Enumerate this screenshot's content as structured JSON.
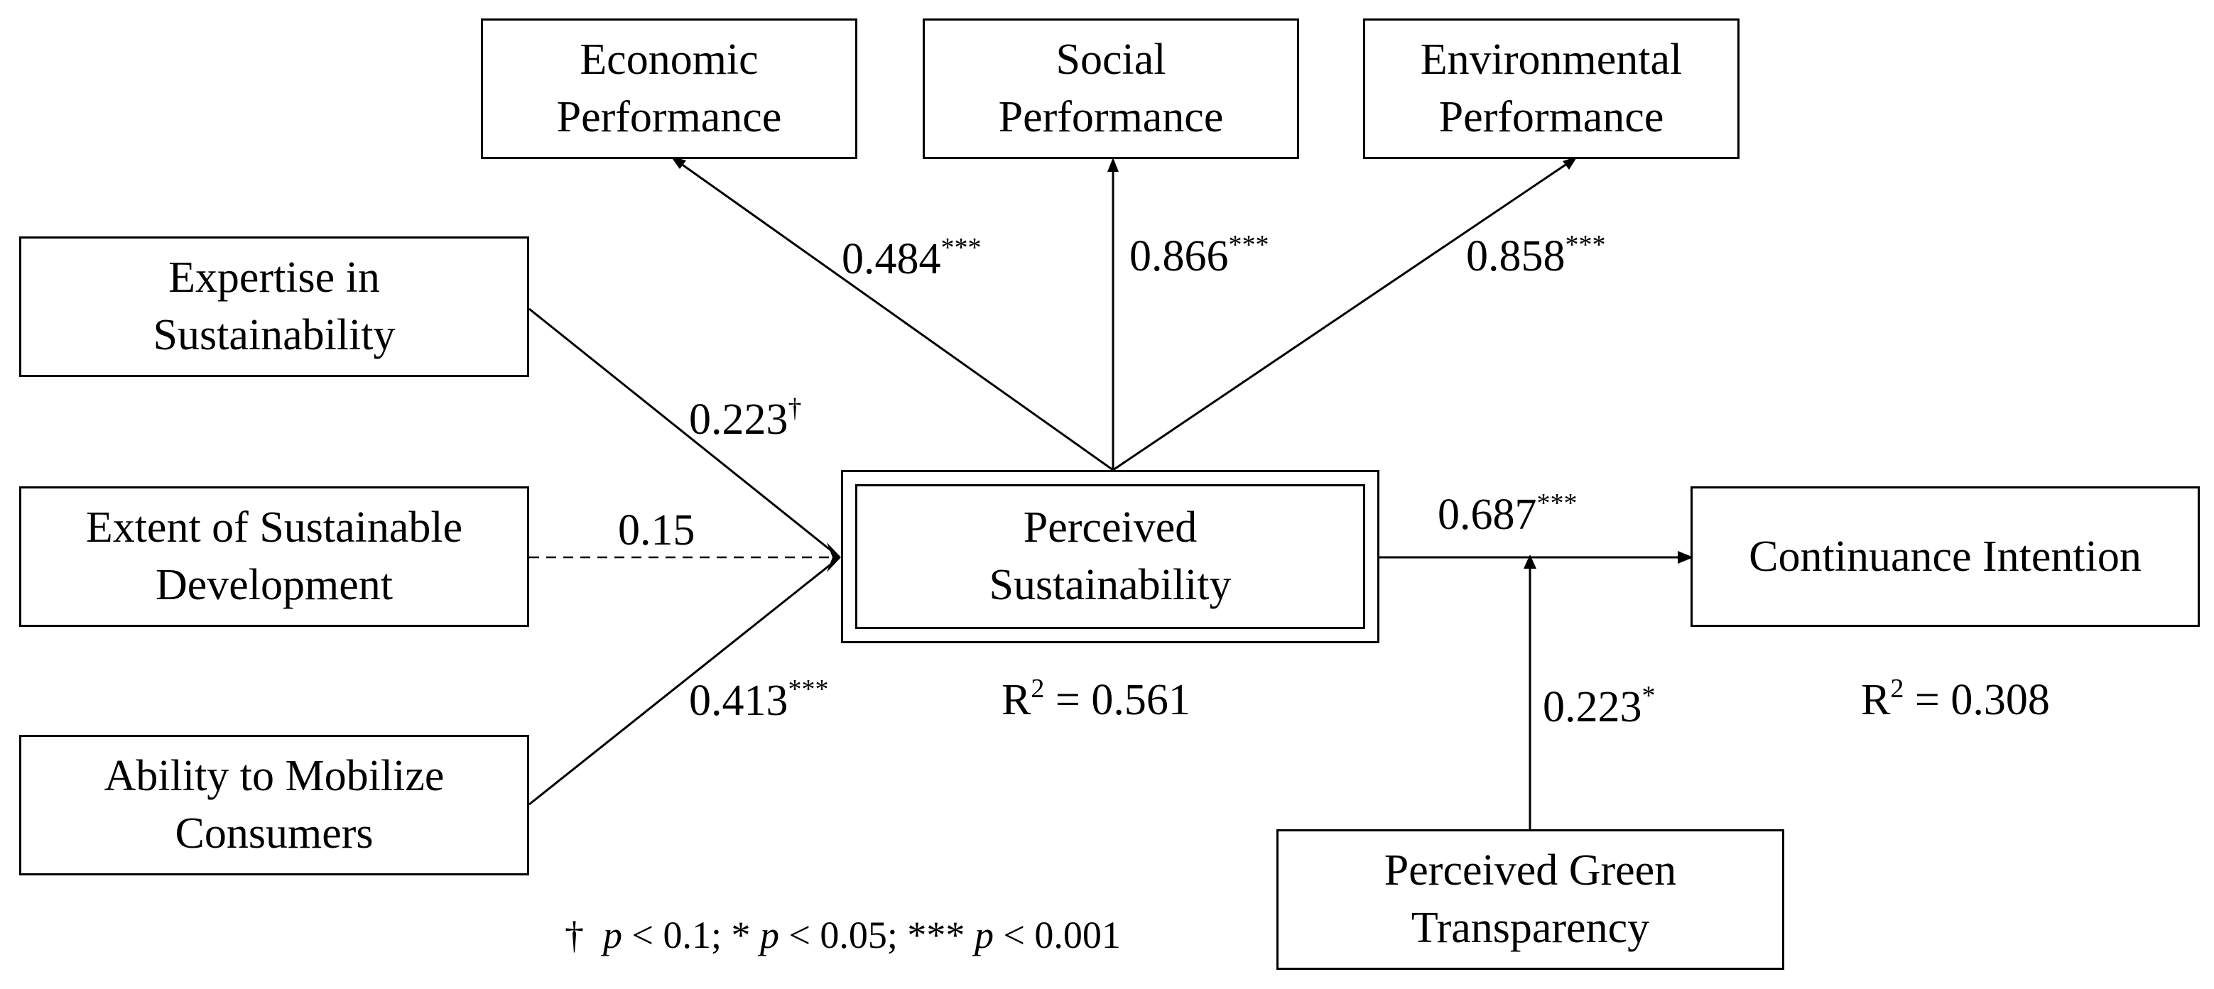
{
  "constructs": {
    "economic": [
      "Economic",
      "Performance"
    ],
    "social": [
      "Social",
      "Performance"
    ],
    "environmental": [
      "Environmental",
      "Performance"
    ],
    "expertise": [
      "Expertise in",
      "Sustainability"
    ],
    "extent": [
      "Extent of Sustainable",
      "Development"
    ],
    "ability": [
      "Ability to Mobilize",
      "Consumers"
    ],
    "perceived": [
      "Perceived",
      "Sustainability"
    ],
    "continuance": [
      "Continuance Intention"
    ],
    "transparency": [
      "Perceived Green",
      "Transparency"
    ]
  },
  "paths": {
    "economic": {
      "coef": "0.484",
      "sig": "***"
    },
    "social": {
      "coef": "0.866",
      "sig": "***"
    },
    "environmental": {
      "coef": "0.858",
      "sig": "***"
    },
    "expertise": {
      "coef": "0.223",
      "sig": "†"
    },
    "extent": {
      "coef": "0.15",
      "sig": ""
    },
    "ability": {
      "coef": "0.413",
      "sig": "***"
    },
    "continuance": {
      "coef": "0.687",
      "sig": "***"
    },
    "transparency": {
      "coef": "0.223",
      "sig": "*"
    }
  },
  "r_squared": {
    "perceived": {
      "prefix": "R",
      "exp": "2",
      "value": " = 0.561"
    },
    "continuance": {
      "prefix": "R",
      "exp": "2",
      "value": " = 0.308"
    }
  },
  "footnote": {
    "dagger": "†",
    "p1": "p",
    "t1": " < 0.1; * ",
    "p2": "p",
    "t2": " < 0.05; *** ",
    "p3": "p",
    "t3": " < 0.001"
  },
  "colors": {
    "line": "#000000",
    "background": "#ffffff"
  }
}
